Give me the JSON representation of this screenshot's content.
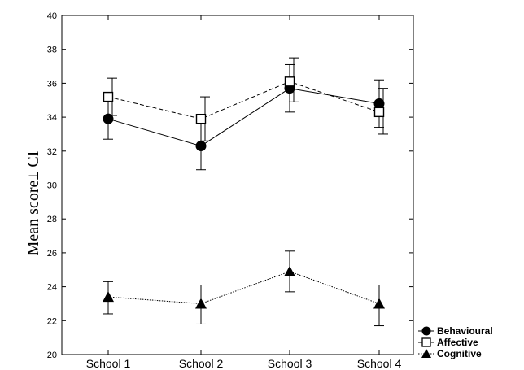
{
  "chart_data": {
    "type": "line",
    "title": "",
    "xlabel": "",
    "ylabel": "Mean score± CI",
    "categories": [
      "School 1",
      "School 2",
      "School 3",
      "School 4"
    ],
    "ylim": [
      20,
      40
    ],
    "yticks": [
      20,
      22,
      24,
      26,
      28,
      30,
      32,
      34,
      36,
      38,
      40
    ],
    "grid": false,
    "legend_position": "bottom-right",
    "series": [
      {
        "name": "Behavioural",
        "marker": "filled-circle",
        "line_style": "solid",
        "values": [
          33.9,
          32.3,
          35.7,
          34.8
        ],
        "ci_low": [
          32.7,
          30.9,
          34.3,
          33.4
        ],
        "ci_high": [
          35.0,
          33.7,
          37.1,
          36.2
        ]
      },
      {
        "name": "Affective",
        "marker": "open-square",
        "line_style": "dashed",
        "values": [
          35.2,
          33.9,
          36.1,
          34.3
        ],
        "ci_low": [
          34.1,
          32.6,
          34.9,
          33.0
        ],
        "ci_high": [
          36.3,
          35.2,
          37.5,
          35.7
        ]
      },
      {
        "name": "Cognitive",
        "marker": "filled-triangle",
        "line_style": "dotted",
        "values": [
          23.4,
          23.0,
          24.9,
          23.0
        ],
        "ci_low": [
          22.4,
          21.8,
          23.7,
          21.7
        ],
        "ci_high": [
          24.3,
          24.1,
          26.1,
          24.1
        ]
      }
    ]
  }
}
